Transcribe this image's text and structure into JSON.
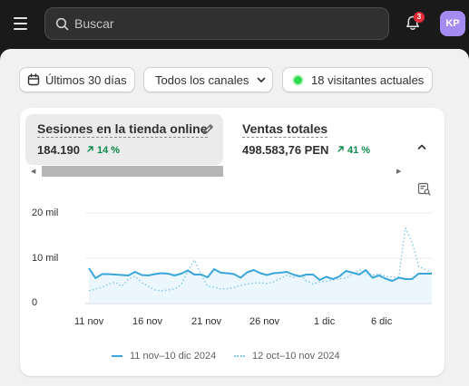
{
  "topbar": {
    "search_placeholder": "Buscar",
    "notifications_count": "3",
    "avatar_initials": "KP"
  },
  "filters": {
    "date_range": "Últimos 30 días",
    "channels": "Todos los canales",
    "visitors": "18 visitantes actuales"
  },
  "metrics": [
    {
      "title": "Sesiones en la tienda online",
      "value": "184.190",
      "change": "14 %",
      "trend": "up"
    },
    {
      "title": "Ventas totales",
      "value": "498.583,76 PEN",
      "change": "41 %",
      "trend": "up"
    }
  ],
  "chart_data": {
    "type": "line",
    "ylabels": [
      "20 mil",
      "10 mil",
      "0"
    ],
    "ylim": [
      0,
      20000
    ],
    "x_ticks": [
      "11 nov",
      "16 nov",
      "21 nov",
      "26 nov",
      "1 dic",
      "6 dic"
    ],
    "series": [
      {
        "name": "11 nov–10 dic 2024",
        "style": "solid",
        "color": "#3aa6d9",
        "values": [
          7800,
          5600,
          6500,
          6500,
          6400,
          6300,
          6200,
          7000,
          6300,
          6200,
          6500,
          6700,
          6600,
          6200,
          6600,
          7300,
          6400,
          6400,
          5800,
          7600,
          6800,
          6700,
          6500,
          5700,
          6900,
          7400,
          6700,
          6300,
          6700,
          6800,
          7000,
          6400,
          6000,
          6400,
          6400,
          5200,
          5900,
          5400,
          6000,
          7200,
          6800,
          6400,
          7400,
          5700,
          6200,
          5500,
          5000,
          5700,
          5400,
          5400,
          6600,
          6600,
          6600
        ]
      },
      {
        "name": "12 oct–10 nov 2024",
        "style": "dotted",
        "color": "#7fc6e8",
        "values": [
          2800,
          3200,
          3600,
          4300,
          4700,
          3800,
          5400,
          6000,
          4600,
          3800,
          3000,
          2800,
          3000,
          3200,
          4200,
          7200,
          9600,
          6400,
          3800,
          3600,
          3200,
          3300,
          3500,
          4000,
          4300,
          4500,
          4600,
          4400,
          4800,
          5500,
          6200,
          5800,
          6200,
          5000,
          4300,
          4800,
          4900,
          5200,
          5500,
          5600,
          6500,
          7400,
          6900,
          6200,
          6600,
          6000,
          5800,
          5900,
          16700,
          13600,
          8200,
          7500,
          6800
        ]
      }
    ],
    "grid": true,
    "legend_position": "bottom"
  }
}
